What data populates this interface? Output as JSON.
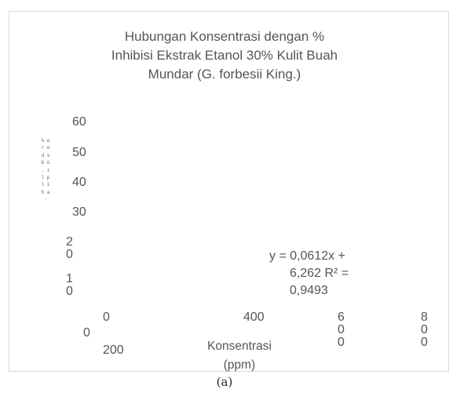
{
  "chart_data": {
    "type": "scatter",
    "title_lines": [
      "Hubungan Konsentrasi dengan %",
      "Inhibisi Ekstrak Etanol 30% Kulit Buah",
      "Mundar (G. forbesii King.)"
    ],
    "ylabel": "% e r e d s b ü . i l p l i h a ·",
    "xlabel_lines": [
      "Konsentrasi",
      "(ppm)"
    ],
    "y_ticks": [
      {
        "lines": [
          "60"
        ]
      },
      {
        "lines": [
          "50"
        ]
      },
      {
        "lines": [
          "40"
        ]
      },
      {
        "lines": [
          "30"
        ]
      },
      {
        "lines": [
          "2",
          "0"
        ]
      },
      {
        "lines": [
          "1",
          "0"
        ]
      },
      {
        "lines": [
          "0"
        ]
      }
    ],
    "x_ticks": [
      {
        "lines": [
          "0"
        ]
      },
      {
        "lines": [
          "200"
        ]
      },
      {
        "lines": [
          "400"
        ]
      },
      {
        "lines": [
          "6",
          "0",
          "0"
        ]
      },
      {
        "lines": [
          "8",
          "0",
          "0"
        ]
      }
    ],
    "trendline_label_lines": [
      "y = 0,0612x +",
      "6,262 R² =",
      "0,9493"
    ],
    "trendline": {
      "slope": 0.0612,
      "intercept": 6.262,
      "r_squared": 0.9493
    },
    "ylim": [
      0,
      60
    ],
    "xlim": [
      0,
      800
    ]
  },
  "caption": "(a)"
}
